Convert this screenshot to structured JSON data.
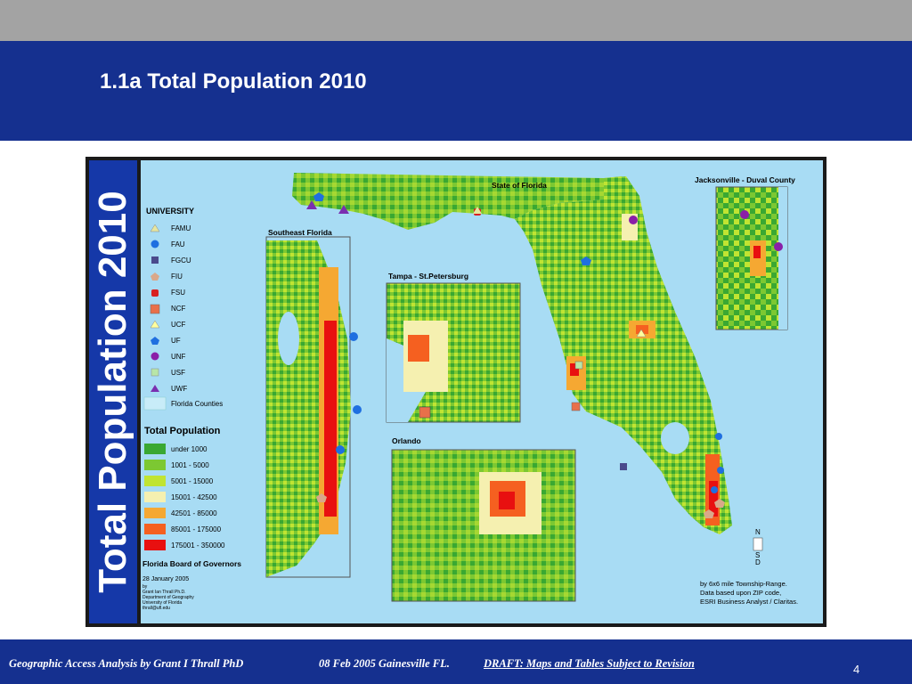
{
  "slide": {
    "title": "1.1a Total Population 2010",
    "page_number": "4"
  },
  "footer": {
    "author": "Geographic Access Analysis by Grant I Thrall PhD",
    "date_place": "08 Feb 2005  Gainesville FL.",
    "draft": "DRAFT:  Maps and Tables Subject to Revision"
  },
  "map": {
    "vertical_title": "Total Population 2010",
    "insets": {
      "state": "State of Florida",
      "jacksonville": "Jacksonville - Duval County",
      "southeast": "Southeast Florida",
      "tampa": "Tampa - St.Petersburg",
      "orlando": "Orlando"
    },
    "university_legend": {
      "title": "UNIVERSITY",
      "items": [
        {
          "label": "FAMU",
          "shape": "triangle",
          "color": "#e6e6a0"
        },
        {
          "label": "FAU",
          "shape": "circle",
          "color": "#1f6fe0"
        },
        {
          "label": "FGCU",
          "shape": "square",
          "color": "#4a4a8c"
        },
        {
          "label": "FIU",
          "shape": "pentagon",
          "color": "#d9a88a"
        },
        {
          "label": "FSU",
          "shape": "rounded-square",
          "color": "#d82020"
        },
        {
          "label": "NCF",
          "shape": "square",
          "color": "#e8704a"
        },
        {
          "label": "UCF",
          "shape": "triangle",
          "color": "#ffff9e"
        },
        {
          "label": "UF",
          "shape": "pentagon",
          "color": "#1f6fe0"
        },
        {
          "label": "UNF",
          "shape": "circle",
          "color": "#8a1fa8"
        },
        {
          "label": "USF",
          "shape": "square",
          "color": "#b8e6a8"
        },
        {
          "label": "UWF",
          "shape": "triangle",
          "color": "#7a2fb0"
        },
        {
          "label": "Florida Counties",
          "shape": "rectangle",
          "color": "#c8ecf8"
        }
      ]
    },
    "population_legend": {
      "title": "Total Population",
      "items": [
        {
          "label": "under 1000",
          "color": "#3aa832"
        },
        {
          "label": "1001 - 5000",
          "color": "#7cc832"
        },
        {
          "label": "5001 - 15000",
          "color": "#c0e432"
        },
        {
          "label": "15001 - 42500",
          "color": "#f5f0b0"
        },
        {
          "label": "42501 - 85000",
          "color": "#f5a832"
        },
        {
          "label": "85001 - 175000",
          "color": "#f56020"
        },
        {
          "label": "175001 - 350000",
          "color": "#e81010"
        }
      ]
    },
    "source": {
      "org": "Florida Board of Governors",
      "date": "28 January 2005",
      "by_lines": [
        "by",
        "Grant Ian Thrall Ph.D.",
        "Department of Geography",
        "University of Florida",
        "thrall@ufl.edu"
      ],
      "notes": [
        "by 6x6 mile Township-Range.",
        "Data based upon ZIP code,",
        "ESRI Business Analyst / Claritas."
      ]
    },
    "compass_letters": [
      "N",
      "S",
      "D"
    ],
    "colors": {
      "water": "#a8dcf4",
      "header_blue": "#15308f",
      "sidebar_blue": "#1538a8"
    }
  }
}
